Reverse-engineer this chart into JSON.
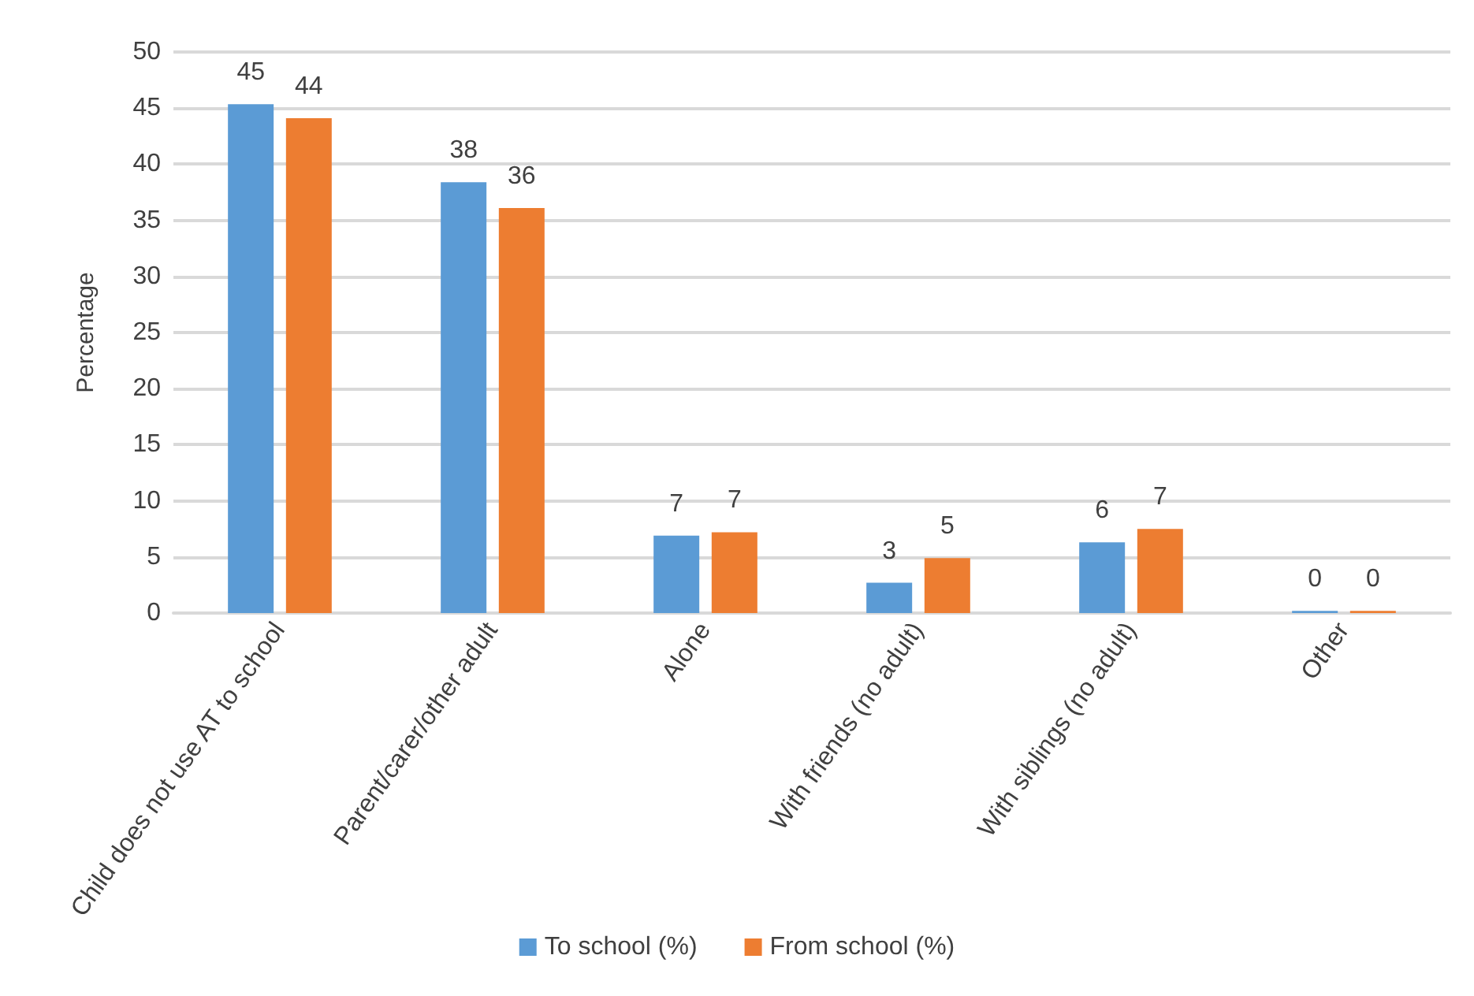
{
  "chart_data": {
    "type": "bar",
    "ylabel": "Percentage",
    "categories": [
      "Child does not use AT to school",
      "Parent/carer/other adult",
      "Alone",
      "With friends (no adult)",
      "With siblings (no adult)",
      "Other"
    ],
    "series": [
      {
        "name": "To school (%)",
        "color": "#5b9bd5",
        "values": [
          45.35,
          38.4,
          6.9,
          2.7,
          6.3,
          0.2
        ],
        "value_labels": [
          "45",
          "38",
          "7",
          "3",
          "6",
          "0"
        ]
      },
      {
        "name": "From school (%)",
        "color": "#ed7d31",
        "values": [
          44.1,
          36.1,
          7.2,
          4.9,
          7.5,
          0.2
        ],
        "value_labels": [
          "44",
          "36",
          "7",
          "5",
          "7",
          "0"
        ]
      }
    ],
    "ylim": [
      0,
      50
    ],
    "yticks": [
      0,
      5,
      10,
      15,
      20,
      25,
      30,
      35,
      40,
      45,
      50
    ],
    "grid": "y",
    "legend": "bottom"
  }
}
